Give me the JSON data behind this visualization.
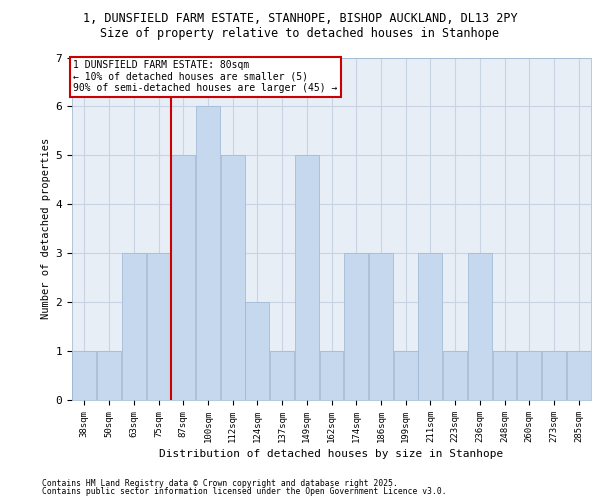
{
  "title_line1": "1, DUNSFIELD FARM ESTATE, STANHOPE, BISHOP AUCKLAND, DL13 2PY",
  "title_line2": "Size of property relative to detached houses in Stanhope",
  "xlabel": "Distribution of detached houses by size in Stanhope",
  "ylabel": "Number of detached properties",
  "categories": [
    "38sqm",
    "50sqm",
    "63sqm",
    "75sqm",
    "87sqm",
    "100sqm",
    "112sqm",
    "124sqm",
    "137sqm",
    "149sqm",
    "162sqm",
    "174sqm",
    "186sqm",
    "199sqm",
    "211sqm",
    "223sqm",
    "236sqm",
    "248sqm",
    "260sqm",
    "273sqm",
    "285sqm"
  ],
  "values": [
    1,
    1,
    3,
    3,
    5,
    6,
    5,
    2,
    1,
    5,
    1,
    3,
    3,
    1,
    3,
    1,
    3,
    1,
    1,
    1,
    1
  ],
  "bar_color": "#c5d8ed",
  "bar_edge_color": "#9ab5d0",
  "grid_color": "#c8d4e4",
  "bg_color": "#e8eef6",
  "property_line_x": 3.5,
  "annotation_text": "1 DUNSFIELD FARM ESTATE: 80sqm\n← 10% of detached houses are smaller (5)\n90% of semi-detached houses are larger (45) →",
  "annotation_box_color": "#ffffff",
  "annotation_border_color": "#cc0000",
  "property_line_color": "#cc0000",
  "ylim": [
    0,
    7
  ],
  "yticks": [
    0,
    1,
    2,
    3,
    4,
    5,
    6,
    7
  ],
  "footer_line1": "Contains HM Land Registry data © Crown copyright and database right 2025.",
  "footer_line2": "Contains public sector information licensed under the Open Government Licence v3.0."
}
